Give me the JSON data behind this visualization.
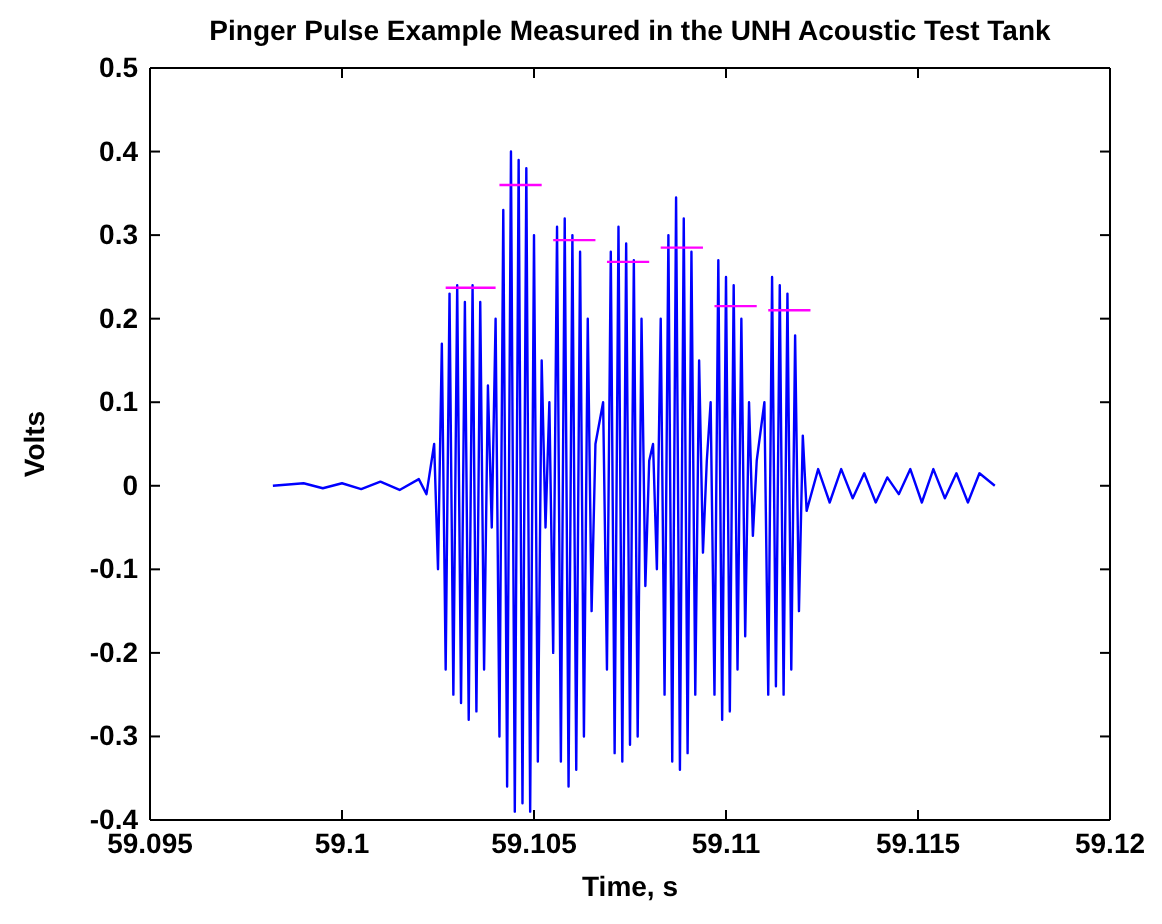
{
  "chart_data": {
    "type": "line",
    "title": "Pinger Pulse Example Measured in the UNH Acoustic Test Tank",
    "xlabel": "Time, s",
    "ylabel": "Volts",
    "xlim": [
      59.095,
      59.12
    ],
    "ylim": [
      -0.4,
      0.5
    ],
    "xticks": [
      59.095,
      59.1,
      59.105,
      59.11,
      59.115,
      59.12
    ],
    "yticks": [
      -0.4,
      -0.3,
      -0.2,
      -0.1,
      0,
      0.1,
      0.2,
      0.3,
      0.4,
      0.5
    ],
    "grid": false,
    "series": [
      {
        "color": "#0000ff",
        "x": [
          59.0982,
          59.099,
          59.0995,
          59.1,
          59.1005,
          59.101,
          59.1015,
          59.102,
          59.1022,
          59.1024,
          59.1025,
          59.1026,
          59.1027,
          59.1028,
          59.1029,
          59.103,
          59.1031,
          59.1032,
          59.1033,
          59.1034,
          59.1035,
          59.1036,
          59.1037,
          59.1038,
          59.1039,
          59.104,
          59.1041,
          59.1042,
          59.1043,
          59.1044,
          59.1045,
          59.1046,
          59.1047,
          59.1048,
          59.1049,
          59.105,
          59.1051,
          59.1052,
          59.1053,
          59.1054,
          59.1055,
          59.1056,
          59.1057,
          59.1058,
          59.1059,
          59.106,
          59.1061,
          59.1062,
          59.1063,
          59.1064,
          59.1065,
          59.1066,
          59.1068,
          59.1069,
          59.107,
          59.1071,
          59.1072,
          59.1073,
          59.1074,
          59.1075,
          59.1076,
          59.1077,
          59.1078,
          59.1079,
          59.108,
          59.1081,
          59.1082,
          59.1083,
          59.1084,
          59.1085,
          59.1086,
          59.1087,
          59.1088,
          59.1089,
          59.109,
          59.1091,
          59.1092,
          59.1093,
          59.1094,
          59.1095,
          59.1096,
          59.1097,
          59.1098,
          59.1099,
          59.11,
          59.1101,
          59.1102,
          59.1103,
          59.1104,
          59.1105,
          59.1106,
          59.1107,
          59.1108,
          59.111,
          59.1111,
          59.1112,
          59.1113,
          59.1114,
          59.1115,
          59.1116,
          59.1117,
          59.1118,
          59.1119,
          59.112,
          59.1121,
          59.1124,
          59.1127,
          59.113,
          59.1133,
          59.1136,
          59.1139,
          59.1142,
          59.1145,
          59.1148,
          59.1151,
          59.1154,
          59.1157,
          59.116,
          59.1163,
          59.1166,
          59.117
        ],
        "values": [
          0,
          0.003,
          -0.003,
          0.003,
          -0.004,
          0.005,
          -0.005,
          0.008,
          -0.01,
          0.05,
          -0.1,
          0.17,
          -0.22,
          0.23,
          -0.25,
          0.24,
          -0.26,
          0.22,
          -0.28,
          0.24,
          -0.27,
          0.22,
          -0.22,
          0.12,
          -0.05,
          0.2,
          -0.3,
          0.33,
          -0.36,
          0.4,
          -0.39,
          0.39,
          -0.38,
          0.38,
          -0.39,
          0.3,
          -0.33,
          0.15,
          -0.05,
          0.1,
          -0.2,
          0.31,
          -0.33,
          0.32,
          -0.36,
          0.3,
          -0.34,
          0.28,
          -0.3,
          0.2,
          -0.15,
          0.05,
          0.1,
          -0.22,
          0.28,
          -0.32,
          0.31,
          -0.33,
          0.29,
          -0.31,
          0.27,
          -0.3,
          0.2,
          -0.12,
          0.03,
          0.05,
          -0.1,
          0.2,
          -0.25,
          0.3,
          -0.33,
          0.345,
          -0.34,
          0.32,
          -0.32,
          0.28,
          -0.25,
          0.15,
          -0.08,
          0.03,
          0.1,
          -0.25,
          0.27,
          -0.28,
          0.25,
          -0.27,
          0.24,
          -0.22,
          0.2,
          -0.18,
          0.1,
          -0.06,
          0.03,
          0.1,
          -0.25,
          0.25,
          -0.24,
          0.24,
          -0.25,
          0.23,
          -0.22,
          0.18,
          -0.15,
          0.06,
          -0.03,
          0.02,
          -0.02,
          0.02,
          -0.015,
          0.015,
          -0.02,
          0.01,
          -0.01,
          0.02,
          -0.02,
          0.02,
          -0.015,
          0.015,
          -0.02,
          0.015,
          0
        ]
      },
      {
        "color": "#ff00ff",
        "x": [
          59.1027,
          59.104
        ],
        "values": [
          0.237,
          0.237
        ]
      },
      {
        "color": "#ff00ff",
        "x": [
          59.1041,
          59.1052
        ],
        "values": [
          0.36,
          0.36
        ]
      },
      {
        "color": "#ff00ff",
        "x": [
          59.1055,
          59.1066
        ],
        "values": [
          0.294,
          0.294
        ]
      },
      {
        "color": "#ff00ff",
        "x": [
          59.1069,
          59.108
        ],
        "values": [
          0.268,
          0.268
        ]
      },
      {
        "color": "#ff00ff",
        "x": [
          59.1083,
          59.1094
        ],
        "values": [
          0.285,
          0.285
        ]
      },
      {
        "color": "#ff00ff",
        "x": [
          59.1097,
          59.1108
        ],
        "values": [
          0.215,
          0.215
        ]
      },
      {
        "color": "#ff00ff",
        "x": [
          59.1111,
          59.1122
        ],
        "values": [
          0.21,
          0.21
        ]
      }
    ]
  }
}
